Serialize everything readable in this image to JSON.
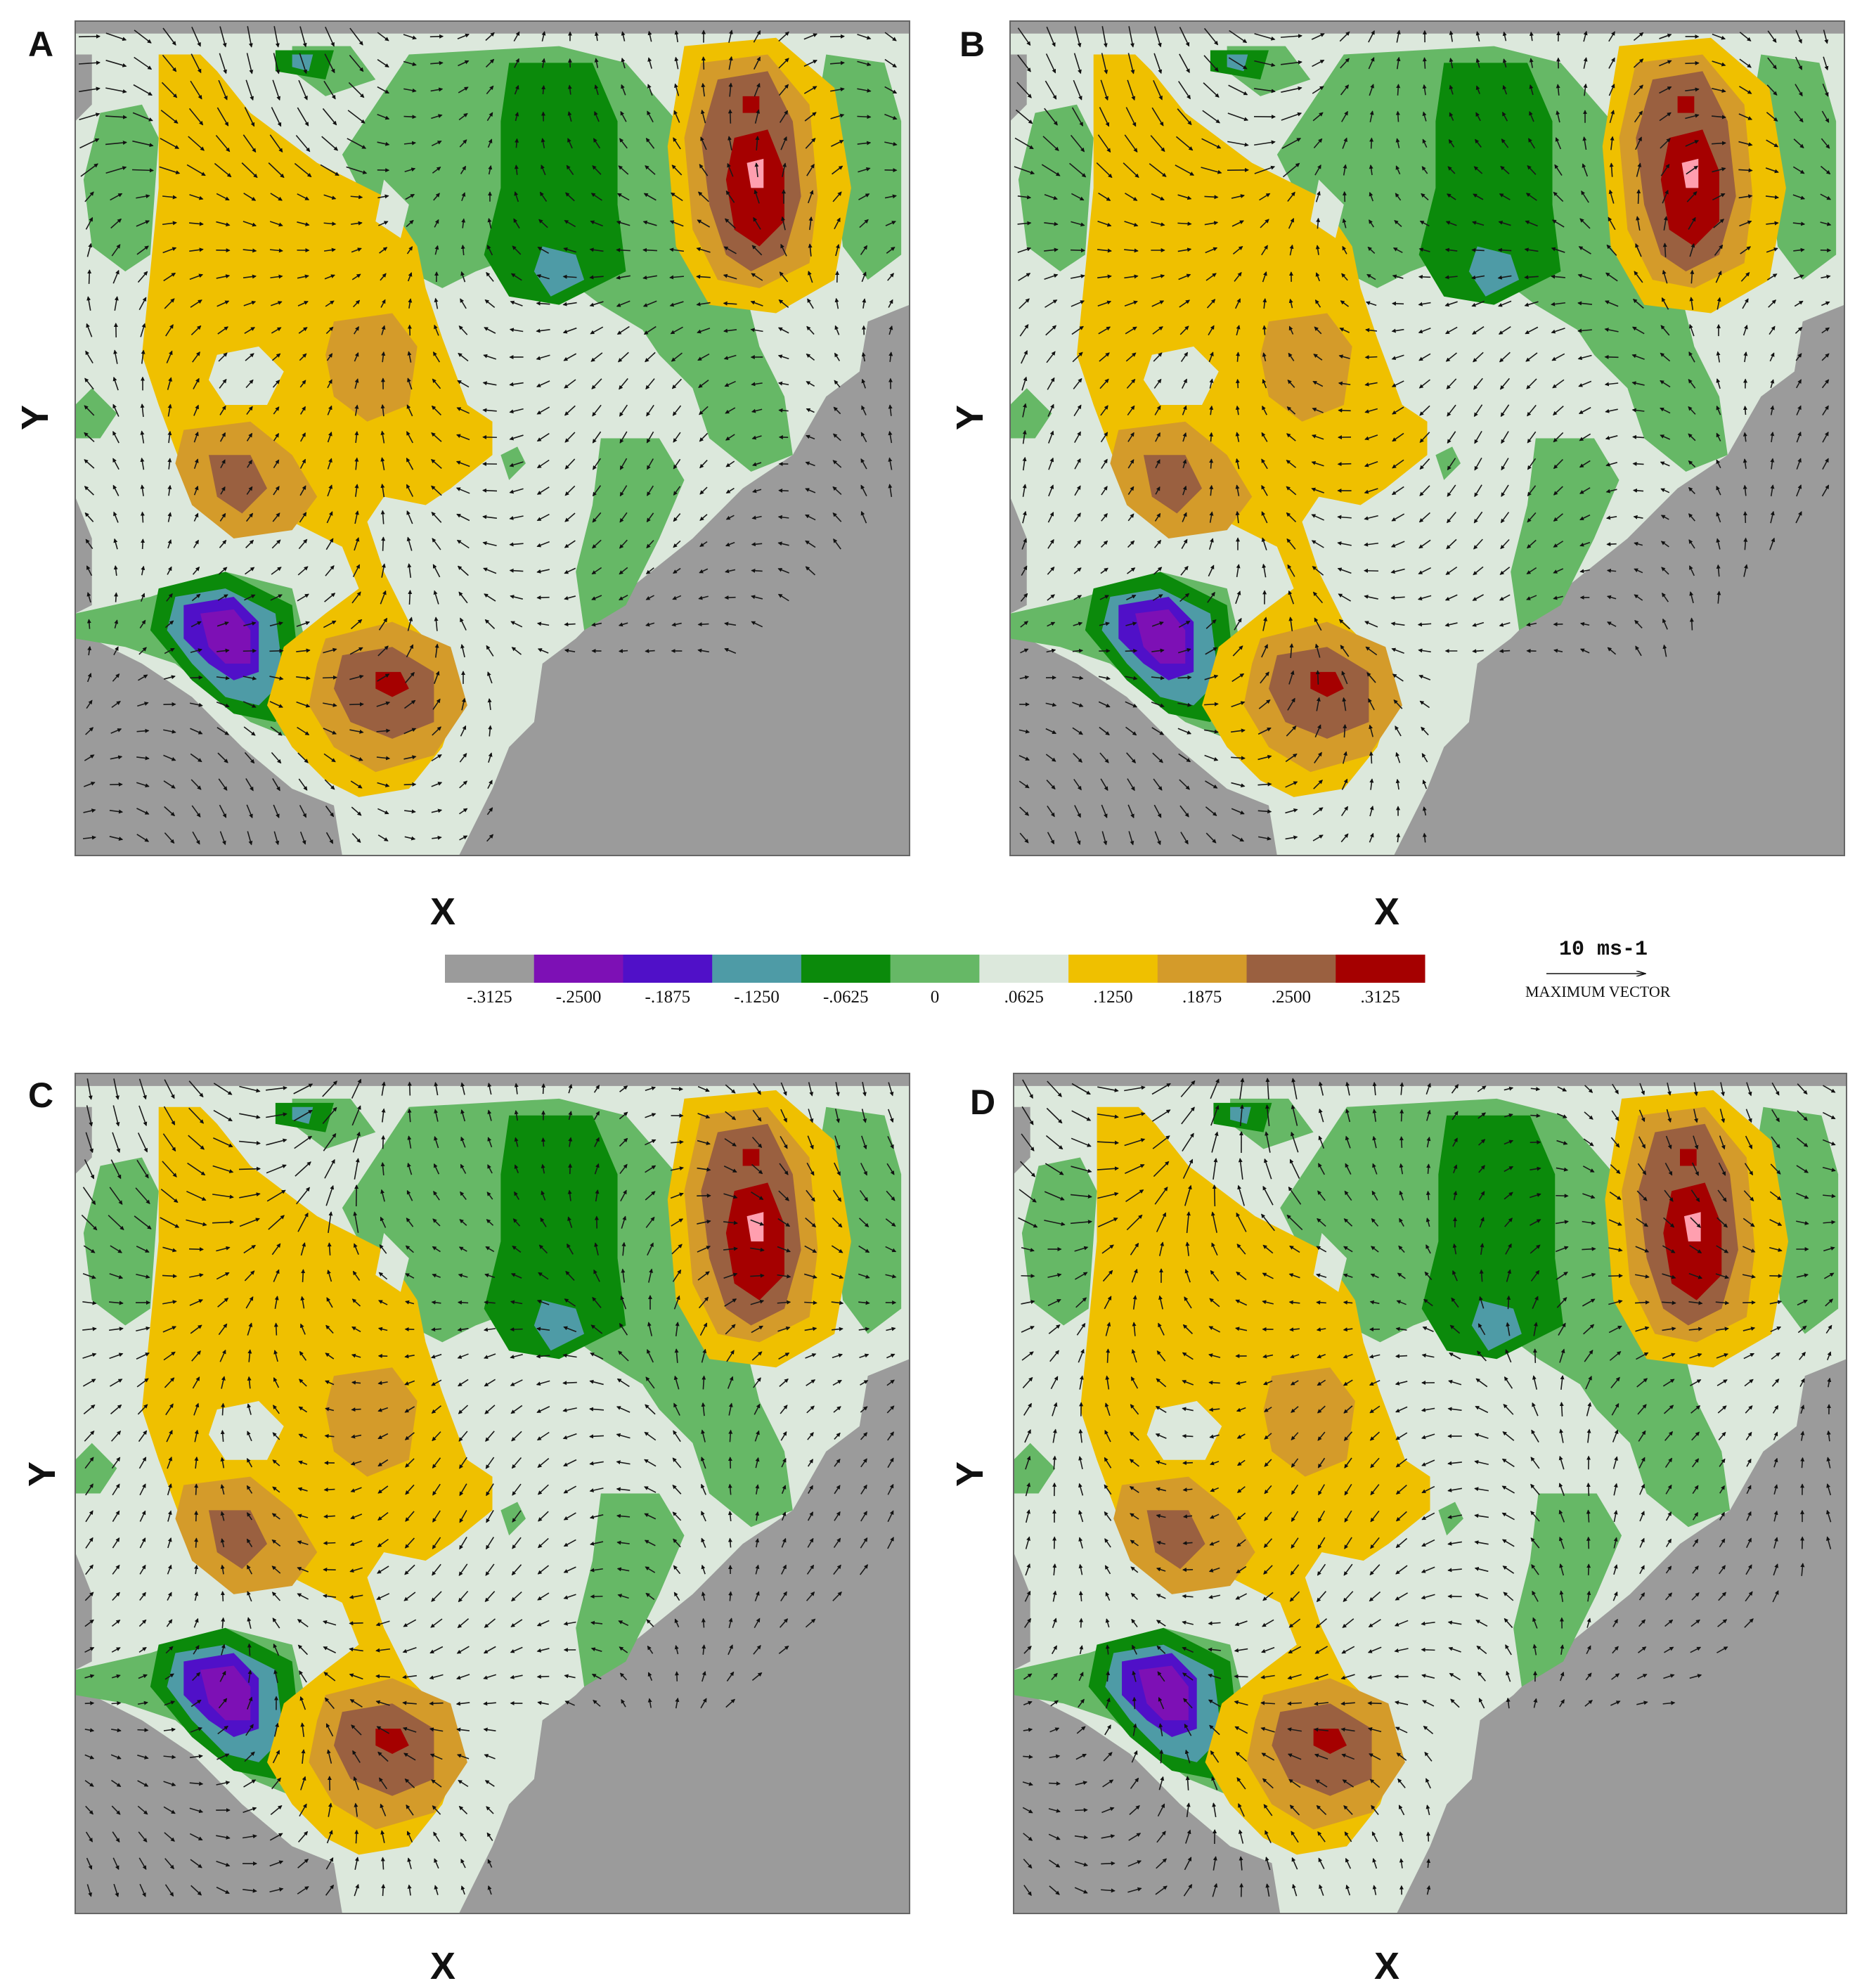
{
  "chart_data": {
    "type": "contour-vector map",
    "colorbar": {
      "levels": [
        "-.3125",
        "-.2500",
        "-.1875",
        "-.1250",
        "-.0625",
        "0",
        ".0625",
        ".1250",
        ".1875",
        ".2500",
        ".3125"
      ],
      "colors": [
        "#9b9b9b",
        "#7d10b5",
        "#5010c8",
        "#4e9ba6",
        "#0b8a0b",
        "#66b866",
        "#dce8dc",
        "#efc000",
        "#d49b2a",
        "#9a6040",
        "#a50000"
      ]
    },
    "vector_legend": {
      "magnitude_label": "10 ms-1",
      "caption": "MAXIMUM VECTOR"
    },
    "panels": [
      {
        "label": "A",
        "xlabel": "X",
        "ylabel": "Y"
      },
      {
        "label": "B",
        "xlabel": "X",
        "ylabel": "Y"
      },
      {
        "label": "C",
        "xlabel": "X",
        "ylabel": "Y"
      },
      {
        "label": "D",
        "xlabel": "X",
        "ylabel": "Y"
      }
    ]
  }
}
